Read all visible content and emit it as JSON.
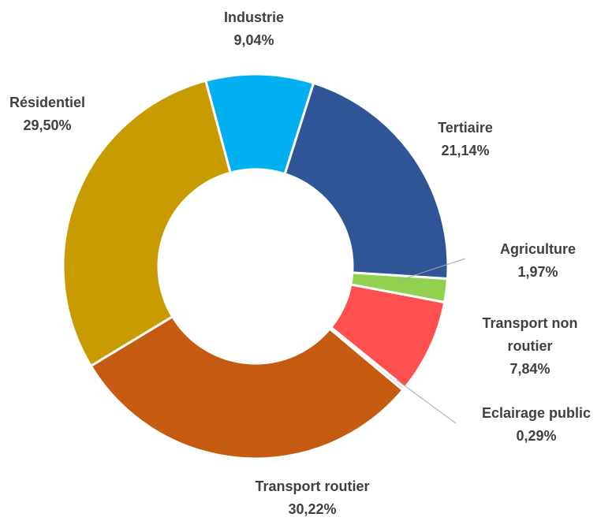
{
  "chart_data": {
    "type": "donut",
    "categories": [
      "Industrie",
      "Tertiaire",
      "Agriculture",
      "Transport non routier",
      "Eclairage public",
      "Transport routier",
      "Résidentiel"
    ],
    "values": [
      9.04,
      21.14,
      1.97,
      7.84,
      0.29,
      30.22,
      29.5
    ],
    "value_labels": [
      "9,04%",
      "21,14%",
      "1,97%",
      "7,84%",
      "0,29%",
      "30,22%",
      "29,50%"
    ],
    "colors": [
      "#00b0f0",
      "#2f5597",
      "#92d050",
      "#ff5050",
      "#d9d9d9",
      "#c55a11",
      "#c89b00"
    ]
  }
}
